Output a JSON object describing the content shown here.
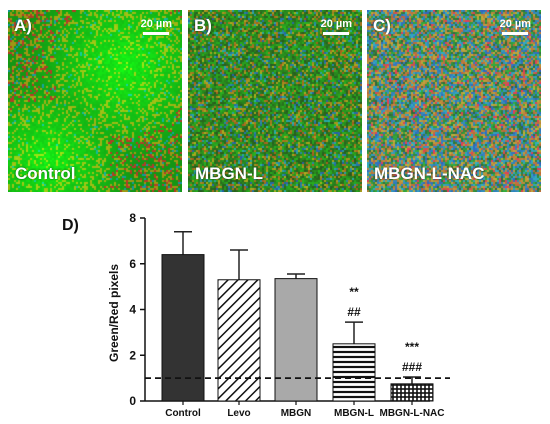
{
  "panels": [
    {
      "letter": "A)",
      "label": "Control",
      "scale": "20 µm",
      "kind": "control"
    },
    {
      "letter": "B)",
      "label": "MBGN-L",
      "scale": "20 µm",
      "kind": "mbgnl"
    },
    {
      "letter": "C)",
      "label": "MBGN-L-NAC",
      "scale": "20 µm",
      "kind": "nac"
    }
  ],
  "chart_data": {
    "type": "bar",
    "panel_label": "D)",
    "title": "",
    "ylabel": "Green/Red pixels",
    "xlabel": "",
    "ylim": [
      0,
      8
    ],
    "yticks": [
      0,
      2,
      4,
      6,
      8
    ],
    "categories": [
      "Control",
      "Levo",
      "MBGN",
      "MBGN-L",
      "MBGN-L-NAC"
    ],
    "values": [
      6.4,
      5.3,
      5.35,
      2.5,
      0.75
    ],
    "errors": [
      1.0,
      1.3,
      0.2,
      0.95,
      0.3
    ],
    "bar_styles": [
      "solid-dark",
      "diagonal-hatch",
      "solid-gray",
      "horizontal-hatch",
      "grid-hatch"
    ],
    "annotations": [
      {
        "category": "MBGN-L",
        "lines": [
          "**",
          "##"
        ]
      },
      {
        "category": "MBGN-L-NAC",
        "lines": [
          "***",
          "###"
        ]
      }
    ],
    "reference_line": {
      "y": 1,
      "style": "dashed"
    }
  }
}
